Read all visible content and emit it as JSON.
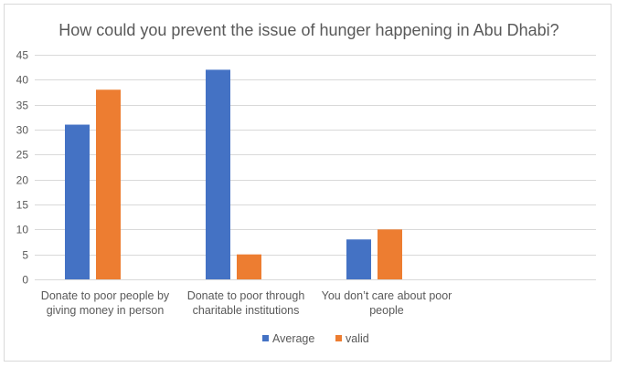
{
  "chart_data": {
    "type": "bar",
    "title": "How could you prevent the issue of hunger happening in Abu Dhabi?",
    "categories": [
      [
        "Donate to poor people by",
        "giving money in person"
      ],
      [
        "Donate to poor through",
        "charitable institutions"
      ],
      [
        "You don’t care about poor",
        "people"
      ]
    ],
    "series": [
      {
        "name": "Average",
        "color": "#4472c4",
        "values": [
          31,
          42,
          8
        ]
      },
      {
        "name": "valid",
        "color": "#ed7d31",
        "values": [
          38,
          5,
          10
        ]
      }
    ],
    "ylim": [
      0,
      45
    ],
    "yticks": [
      0,
      5,
      10,
      15,
      20,
      25,
      30,
      35,
      40,
      45
    ],
    "grid": true,
    "legend": "bottom",
    "gridColor": "#d9d9d9",
    "textColor": "#595959"
  }
}
